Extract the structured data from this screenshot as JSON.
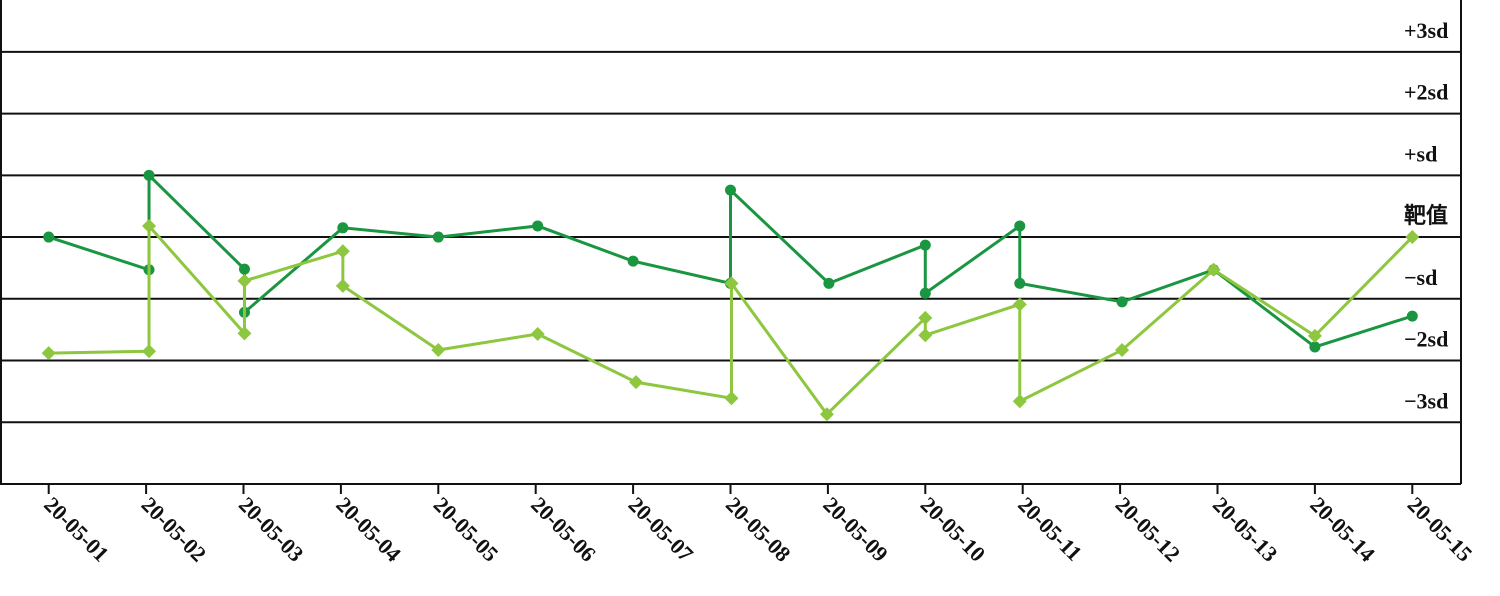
{
  "chart_data": {
    "type": "line",
    "xlim": [
      0.5,
      15.5
    ],
    "xticks": [
      {
        "value": 1,
        "label": "20-05-01"
      },
      {
        "value": 2,
        "label": "20-05-02"
      },
      {
        "value": 3,
        "label": "20-05-03"
      },
      {
        "value": 4,
        "label": "20-05-04"
      },
      {
        "value": 5,
        "label": "20-05-05"
      },
      {
        "value": 6,
        "label": "20-05-06"
      },
      {
        "value": 7,
        "label": "20-05-07"
      },
      {
        "value": 8,
        "label": "20-05-08"
      },
      {
        "value": 9,
        "label": "20-05-09"
      },
      {
        "value": 10,
        "label": "20-05-10"
      },
      {
        "value": 11,
        "label": "20-05-11"
      },
      {
        "value": 12,
        "label": "20-05-12"
      },
      {
        "value": 13,
        "label": "20-05-13"
      },
      {
        "value": 14,
        "label": "20-05-14"
      },
      {
        "value": 15,
        "label": "20-05-15"
      }
    ],
    "ylim": [
      -4,
      3.84
    ],
    "yticks": [
      {
        "value": 3,
        "label": "+3sd"
      },
      {
        "value": 2,
        "label": "+2sd"
      },
      {
        "value": 1,
        "label": "+sd"
      },
      {
        "value": 0,
        "label": "靶值"
      },
      {
        "value": -1,
        "label": "−sd"
      },
      {
        "value": -2,
        "label": "−2sd"
      },
      {
        "value": -3,
        "label": "−3sd"
      }
    ],
    "grid": true,
    "series": [
      {
        "color": "#1a9641",
        "marker": "circle",
        "x": [
          1,
          2.03,
          2.03,
          3.01,
          3.01,
          4.02,
          5,
          6.02,
          7,
          8,
          8,
          9.01,
          10,
          10,
          10.97,
          10.97,
          12.02,
          12.96,
          14,
          15
        ],
        "values": [
          0,
          -0.53,
          1.0,
          -0.52,
          -1.22,
          0.15,
          0,
          0.18,
          -0.39,
          -0.75,
          0.76,
          -0.75,
          -0.13,
          -0.91,
          0.18,
          -0.75,
          -1.05,
          -0.53,
          -1.78,
          -1.28
        ]
      },
      {
        "color": "#8dc63f",
        "marker": "diamond",
        "x": [
          1,
          2.03,
          2.03,
          3.01,
          3.01,
          4.02,
          4.02,
          5,
          6.02,
          7.03,
          8.01,
          8.01,
          8.99,
          10,
          10,
          10.97,
          10.97,
          12.02,
          12.96,
          14,
          15
        ],
        "values": [
          -1.88,
          -1.85,
          0.18,
          -1.56,
          -0.71,
          -0.23,
          -0.79,
          -1.83,
          -1.57,
          -2.35,
          -2.61,
          -0.75,
          -2.87,
          -1.31,
          -1.59,
          -1.09,
          -2.66,
          -1.83,
          -0.53,
          -1.6,
          0
        ]
      }
    ]
  }
}
